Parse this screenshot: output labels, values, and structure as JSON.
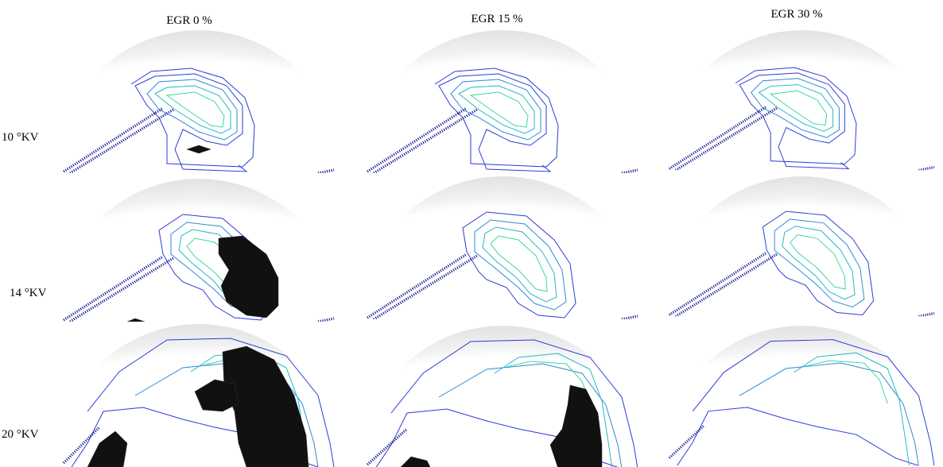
{
  "columns": [
    "EGR 0 %",
    "EGR 15 %",
    "EGR 30 %"
  ],
  "rows": [
    "10 °KV",
    "14 °KV",
    "20 °KV"
  ]
}
